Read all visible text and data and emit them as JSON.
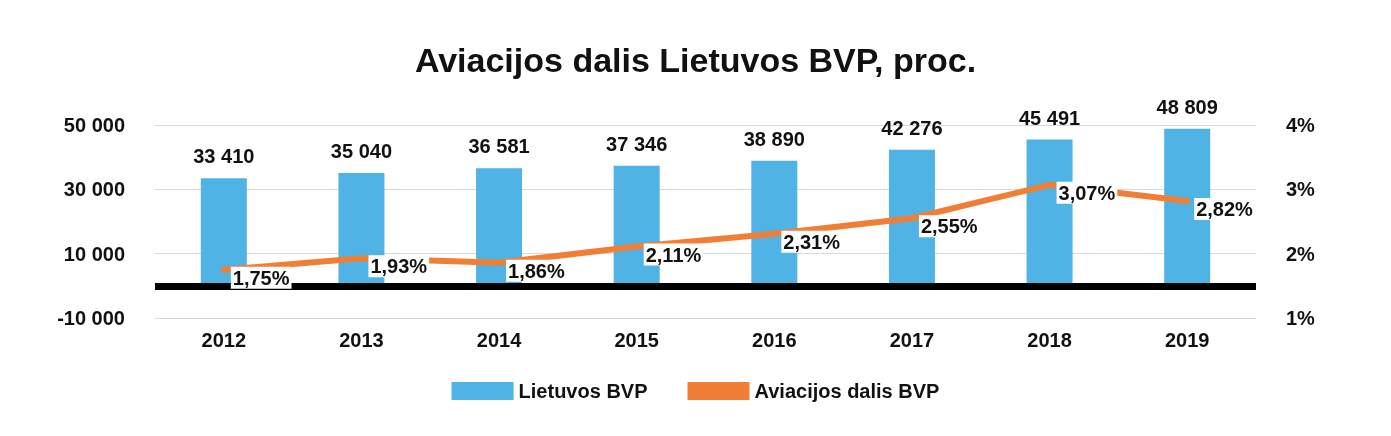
{
  "chart_data": {
    "type": "bar",
    "title": "Aviacijos dalis Lietuvos BVP, proc.",
    "categories": [
      "2012",
      "2013",
      "2014",
      "2015",
      "2016",
      "2017",
      "2018",
      "2019"
    ],
    "series": [
      {
        "name": "Lietuvos BVP",
        "color": "#4fb3e6",
        "values": [
          33410,
          35040,
          36581,
          37346,
          38890,
          42276,
          45491,
          48809
        ],
        "value_labels": [
          "33 410",
          "35 040",
          "36 581",
          "37 346",
          "38 890",
          "42 276",
          "45 491",
          "48 809"
        ]
      },
      {
        "name": "Aviacijos dalis BVP",
        "type": "line",
        "axis": "y2",
        "color": "#f07f35",
        "marker": "none",
        "values": [
          1.75,
          1.93,
          1.86,
          2.11,
          2.31,
          2.55,
          3.07,
          2.82
        ],
        "value_labels": [
          "1,75%",
          "1,93%",
          "1,86%",
          "2,11%",
          "2,31%",
          "2,55%",
          "3,07%",
          "2,82%"
        ]
      }
    ],
    "ylim": [
      -10000,
      50000
    ],
    "yticks": [
      {
        "value": -10000,
        "label": "-10 000"
      },
      {
        "value": 10000,
        "label": "10 000"
      },
      {
        "value": 30000,
        "label": "30 000"
      },
      {
        "value": 50000,
        "label": "50 000"
      }
    ],
    "y2lim": [
      1,
      4
    ],
    "y2ticks": [
      {
        "value": 1,
        "label": "1%"
      },
      {
        "value": 2,
        "label": "2%"
      },
      {
        "value": 3,
        "label": "3%"
      },
      {
        "value": 4,
        "label": "4%"
      }
    ],
    "ref_lines": [
      {
        "axis": "y",
        "value": 0,
        "color": "#000000"
      }
    ],
    "grid": "y",
    "legend": "bottom"
  }
}
